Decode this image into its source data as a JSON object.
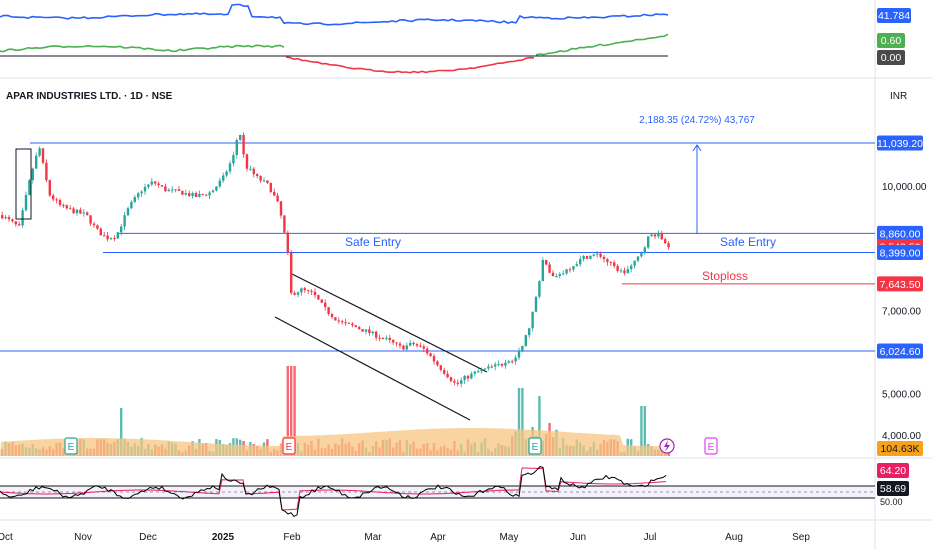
{
  "symbol": {
    "title": "APAR INDUSTRIES LTD. · 1D · NSE",
    "currency": "INR"
  },
  "colors": {
    "up": "#26a69a",
    "down": "#f23645",
    "blue": "#2962ff",
    "grid": "#f0f3fa",
    "volume_up": "#26a69a",
    "volume_down": "#f23645",
    "volume_ma": "#f7c680",
    "indicator_blue": "#2962ff",
    "indicator_green": "#4caf50",
    "indicator_red": "#f23645",
    "rsi_line": "#000000",
    "rsi_ma": "#e91e63"
  },
  "top_indicator": {
    "value_label": "41.784",
    "macd_value_label": "0.60",
    "zero_label": "0.00"
  },
  "price_scale": {
    "ticks": [
      "11,039.20",
      "10,000.00",
      "8,860.00",
      "8,543.50",
      "8,399.00",
      "7,643.50",
      "7,000.00",
      "6,024.60",
      "5,000.00",
      "4,000.00"
    ],
    "tick_values": [
      11039.2,
      10000,
      8860,
      8543.5,
      8399,
      7643.5,
      7000,
      6024.6,
      5000,
      4000
    ],
    "tagged": [
      "11,039.20",
      "8,860.00",
      "8,543.50",
      "8,399.00",
      "7,643.50",
      "6,024.60"
    ]
  },
  "volume": {
    "last_label": "104.63K"
  },
  "rsi": {
    "value_label": "64.20",
    "ma_label": "58.69",
    "level_label": "50.00"
  },
  "annotations": {
    "safe_entry_left": "Safe Entry",
    "safe_entry_right": "Safe Entry",
    "stoploss": "Stoploss",
    "measure": "2,188.35 (24.72%) 43,767"
  },
  "months": [
    "Oct",
    "Nov",
    "Dec",
    "2025",
    "Feb",
    "Mar",
    "Apr",
    "May",
    "Jun",
    "Jul",
    "Aug",
    "Sep"
  ],
  "events": [
    "E",
    "E",
    "E",
    "E"
  ],
  "chart_data": {
    "type": "candlestick",
    "x": [
      "Oct",
      "Nov",
      "Dec",
      "2025",
      "Feb",
      "Mar",
      "Apr",
      "May",
      "Jun",
      "Jul"
    ],
    "close": [
      9300,
      8750,
      9850,
      11100,
      7400,
      6500,
      5000,
      8000,
      8550,
      8543.5
    ],
    "ylim": [
      3800,
      12200
    ],
    "horizontal_levels": [
      11039.2,
      8860,
      8399,
      7643.5,
      6024.6
    ],
    "title": "APAR INDUSTRIES LTD. · 1D · NSE"
  }
}
